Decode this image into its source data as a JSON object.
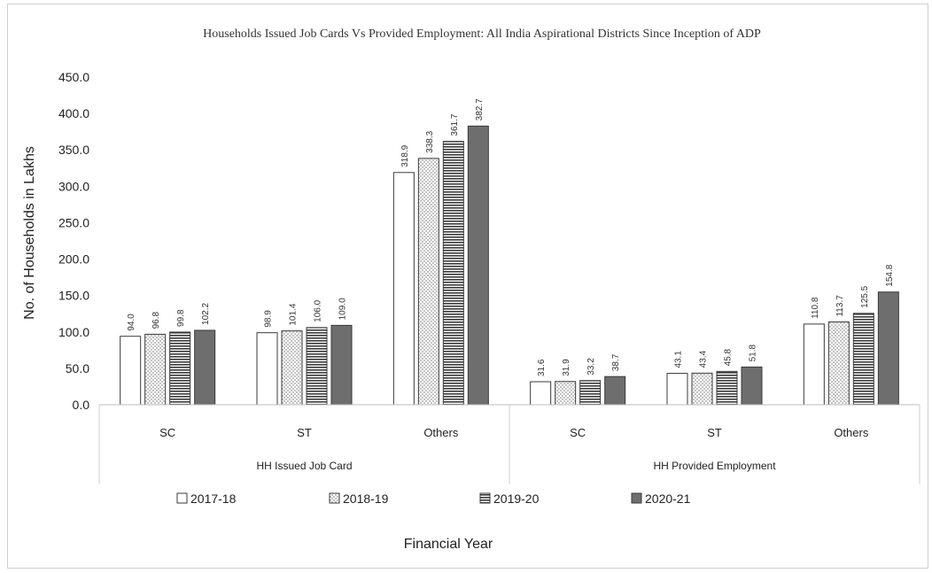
{
  "chart_data": {
    "type": "bar",
    "title": "Households Issued Job Cards Vs Provided Employment: All India Aspirational Districts Since Inception of ADP",
    "xlabel": "Financial Year",
    "ylabel": "No. of Households in Lakhs",
    "ylim": [
      0,
      450
    ],
    "yticks": [
      "0.0",
      "50.0",
      "100.0",
      "150.0",
      "200.0",
      "250.0",
      "300.0",
      "350.0",
      "400.0",
      "450.0"
    ],
    "groups": [
      {
        "label": "HH Issued Job Card",
        "categories": [
          "SC",
          "ST",
          "Others"
        ]
      },
      {
        "label": "HH Provided Employment",
        "categories": [
          "SC",
          "ST",
          "Others"
        ]
      }
    ],
    "categories": [
      "SC",
      "ST",
      "Others",
      "SC",
      "ST",
      "Others"
    ],
    "series": [
      {
        "name": "2017-18",
        "values": [
          94.0,
          98.9,
          318.9,
          31.6,
          43.1,
          110.8
        ],
        "labels": [
          "94.0",
          "98.9",
          "318.9",
          "31.6",
          "43.1",
          "110.8"
        ],
        "pattern": "plain"
      },
      {
        "name": "2018-19",
        "values": [
          96.8,
          101.4,
          338.3,
          31.9,
          43.4,
          113.7
        ],
        "labels": [
          "96.8",
          "101.4",
          "338.3",
          "31.9",
          "43.4",
          "113.7"
        ],
        "pattern": "dots"
      },
      {
        "name": "2019-20",
        "values": [
          99.8,
          106.0,
          361.7,
          33.2,
          45.8,
          125.5
        ],
        "labels": [
          "99.8",
          "106.0",
          "361.7",
          "33.2",
          "45.8",
          "125.5"
        ],
        "pattern": "hstripes"
      },
      {
        "name": "2020-21",
        "values": [
          102.2,
          109.0,
          382.7,
          38.7,
          51.8,
          154.8
        ],
        "labels": [
          "102.2",
          "109.0",
          "382.7",
          "38.7",
          "51.8",
          "154.8"
        ],
        "pattern": "solid"
      }
    ],
    "grid": false,
    "legend_position": "bottom"
  }
}
